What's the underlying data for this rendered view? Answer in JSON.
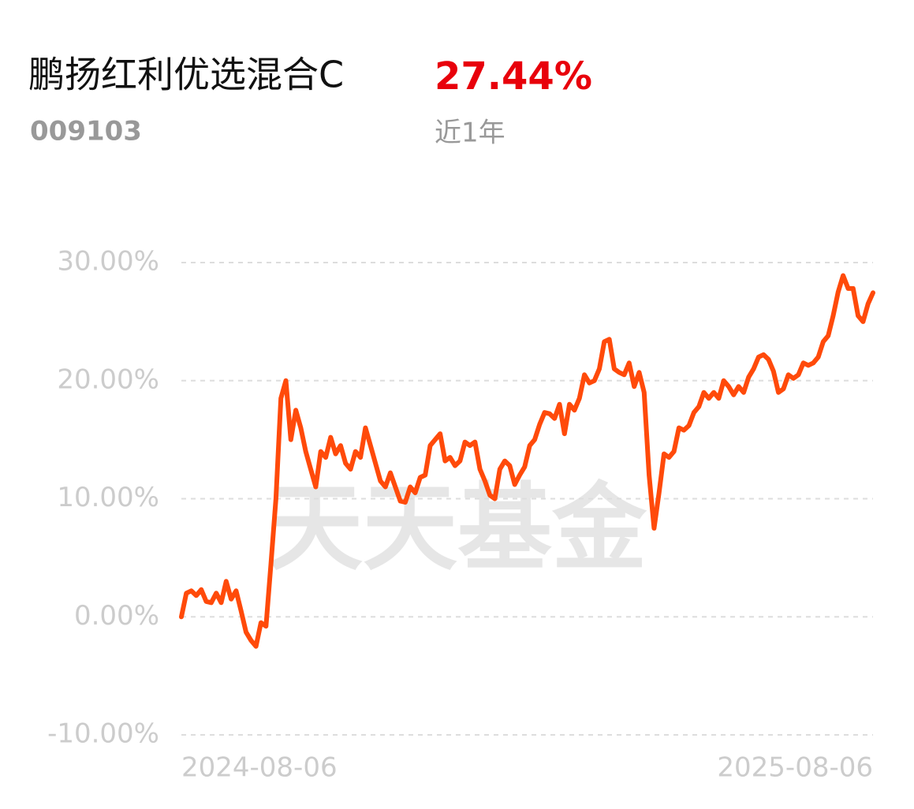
{
  "header": {
    "fund_name": "鹏扬红利优选混合C",
    "fund_code": "009103",
    "return": "27.44%",
    "period": "近1年"
  },
  "watermark": "天天基金",
  "chart_data": {
    "type": "line",
    "categories": [
      "2024-08-06",
      null,
      null,
      null,
      null,
      null,
      null,
      null,
      null,
      null,
      null,
      null,
      null,
      null,
      null,
      null,
      null,
      null,
      null,
      null,
      null,
      null,
      null,
      null,
      null,
      null,
      null,
      null,
      null,
      null,
      null,
      null,
      null,
      null,
      null,
      null,
      null,
      null,
      null,
      null,
      null,
      null,
      null,
      null,
      null,
      null,
      null,
      null,
      null,
      null,
      null,
      null,
      null,
      null,
      null,
      null,
      null,
      null,
      null,
      null,
      null,
      null,
      null,
      null,
      null,
      null,
      null,
      null,
      null,
      null,
      null,
      null,
      null,
      null,
      null,
      null,
      null,
      null,
      null,
      null,
      null,
      null,
      null,
      null,
      null,
      null,
      null,
      null,
      null,
      null,
      null,
      null,
      null,
      null,
      null,
      null,
      null,
      null,
      null,
      null,
      null,
      null,
      null,
      null,
      null,
      null,
      null,
      null,
      null,
      null,
      null,
      null,
      null,
      null,
      null,
      null,
      null,
      null,
      null,
      null,
      null,
      null,
      null,
      null,
      null,
      null,
      null,
      null,
      null,
      null,
      null,
      null,
      null,
      null,
      null,
      null,
      null,
      null,
      null,
      "2025-08-06"
    ],
    "values": [
      0,
      2,
      2.2,
      1.8,
      2.3,
      1.3,
      1.2,
      2.0,
      1.2,
      3.0,
      1.5,
      2.2,
      0.5,
      -1.3,
      -2,
      -2.5,
      -0.5,
      -0.8,
      4.5,
      10,
      18.5,
      20,
      15,
      17.5,
      16,
      14,
      12.5,
      11,
      14,
      13.5,
      15.2,
      13.8,
      14.5,
      13,
      12.5,
      14,
      13.5,
      16,
      14.5,
      13,
      11.5,
      11,
      12.2,
      11,
      9.8,
      9.7,
      11,
      10.5,
      11.8,
      12,
      14.5,
      15,
      15.5,
      13.2,
      13.5,
      12.8,
      13.2,
      14.8,
      14.5,
      14.8,
      12.5,
      11.5,
      10.3,
      10,
      12.5,
      13.2,
      12.8,
      11.2,
      12,
      12.7,
      14.5,
      15,
      16.3,
      17.3,
      17.2,
      16.8,
      18,
      15.5,
      18,
      17.5,
      18.5,
      20.5,
      19.8,
      20,
      21,
      23.3,
      23.5,
      21,
      20.7,
      20.5,
      21.5,
      19.5,
      20.7,
      19,
      12,
      7.5,
      10.5,
      13.8,
      13.5,
      14,
      16,
      15.8,
      16.2,
      17.3,
      17.8,
      19,
      18.5,
      19,
      18.5,
      20,
      19.5,
      18.8,
      19.5,
      19,
      20.3,
      21,
      22,
      22.2,
      21.8,
      20.8,
      19,
      19.3,
      20.5,
      20.2,
      20.5,
      21.5,
      21.3,
      21.5,
      22,
      23.3,
      23.8,
      25.5,
      27.5,
      28.9,
      27.8,
      27.8,
      25.5,
      25,
      26.5,
      27.44
    ],
    "color": "#ff4a0a",
    "ylim": [
      -10,
      30
    ],
    "yticks": [
      {
        "value": -10,
        "label": "-10.00%"
      },
      {
        "value": 0,
        "label": "0.00%"
      },
      {
        "value": 10,
        "label": "10.00%"
      },
      {
        "value": 20,
        "label": "20.00%"
      },
      {
        "value": 30,
        "label": "30.00%"
      }
    ],
    "grid": true
  }
}
